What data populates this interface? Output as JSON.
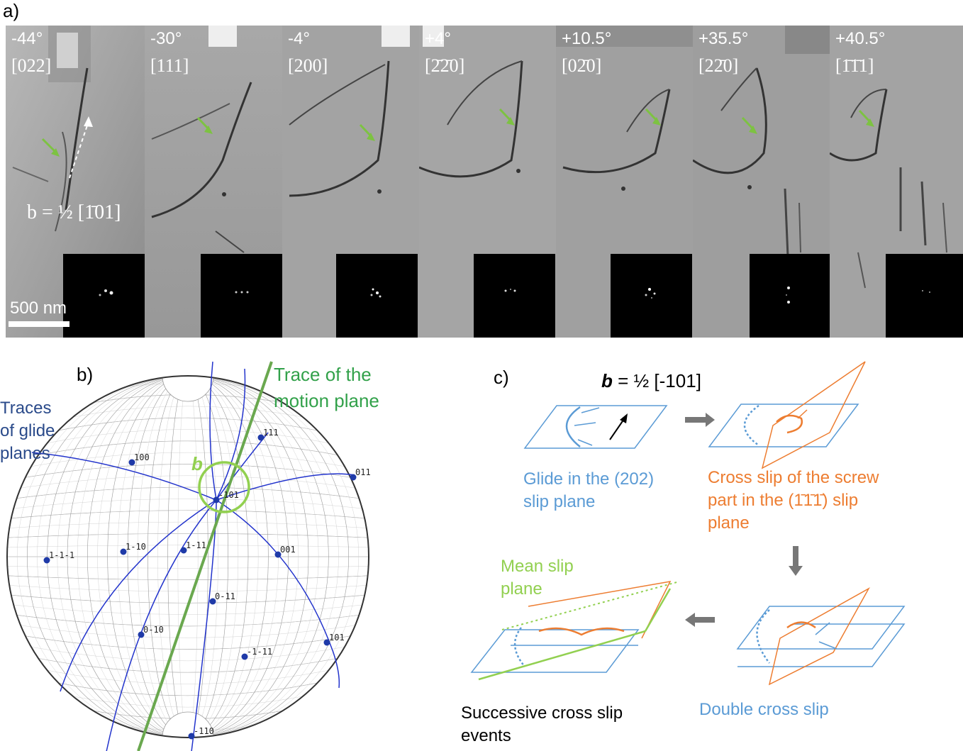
{
  "panel_labels": {
    "a": "a)",
    "b": "b)",
    "c": "c)"
  },
  "frames": [
    {
      "angle": "-44°",
      "direction": "[022]"
    },
    {
      "angle": "-30°",
      "direction": "[111]"
    },
    {
      "angle": "-4°",
      "direction": "[200]"
    },
    {
      "angle": "+4°",
      "direction": "[2̄2̄0]"
    },
    {
      "angle": "+10.5°",
      "direction": "[02̄0]"
    },
    {
      "angle": "+35.5°",
      "direction": "[22̄0]"
    },
    {
      "angle": "+40.5°",
      "direction": "[1̄1̄1]"
    }
  ],
  "scale_bar": "500 nm",
  "burgers_vector_a": "b = ½ [1̄01]",
  "stereogram": {
    "traces_label": "Traces of glide planes",
    "traces_lines": [
      "Traces",
      "of glide",
      "planes"
    ],
    "motion_plane_lines": [
      "Trace of the",
      "motion plane"
    ],
    "b_label": "b",
    "poles": [
      "111",
      "100",
      "011",
      "-101",
      "1-1-1",
      "1-10",
      "1-11",
      "001",
      "0-11",
      "0-10",
      "101",
      "-1-11",
      "-110"
    ]
  },
  "schematic": {
    "burgers": "b = ½ [-101]",
    "step1_lines": [
      "Glide in the (202)",
      "slip plane"
    ],
    "step2_lines": [
      "Cross slip of the screw",
      "part in the (1̄1̄1̄) slip",
      "plane"
    ],
    "step3_lines": [
      "Double cross slip"
    ],
    "step4_lines": [
      "Successive cross slip",
      "events"
    ],
    "mean_plane_lines": [
      "Mean slip",
      "plane"
    ]
  },
  "colors": {
    "blue": "#5b9bd5",
    "orange": "#ed7d31",
    "green": "#92d050",
    "trace_green": "#6aa84f",
    "pole_blue": "#1f3aa8"
  }
}
